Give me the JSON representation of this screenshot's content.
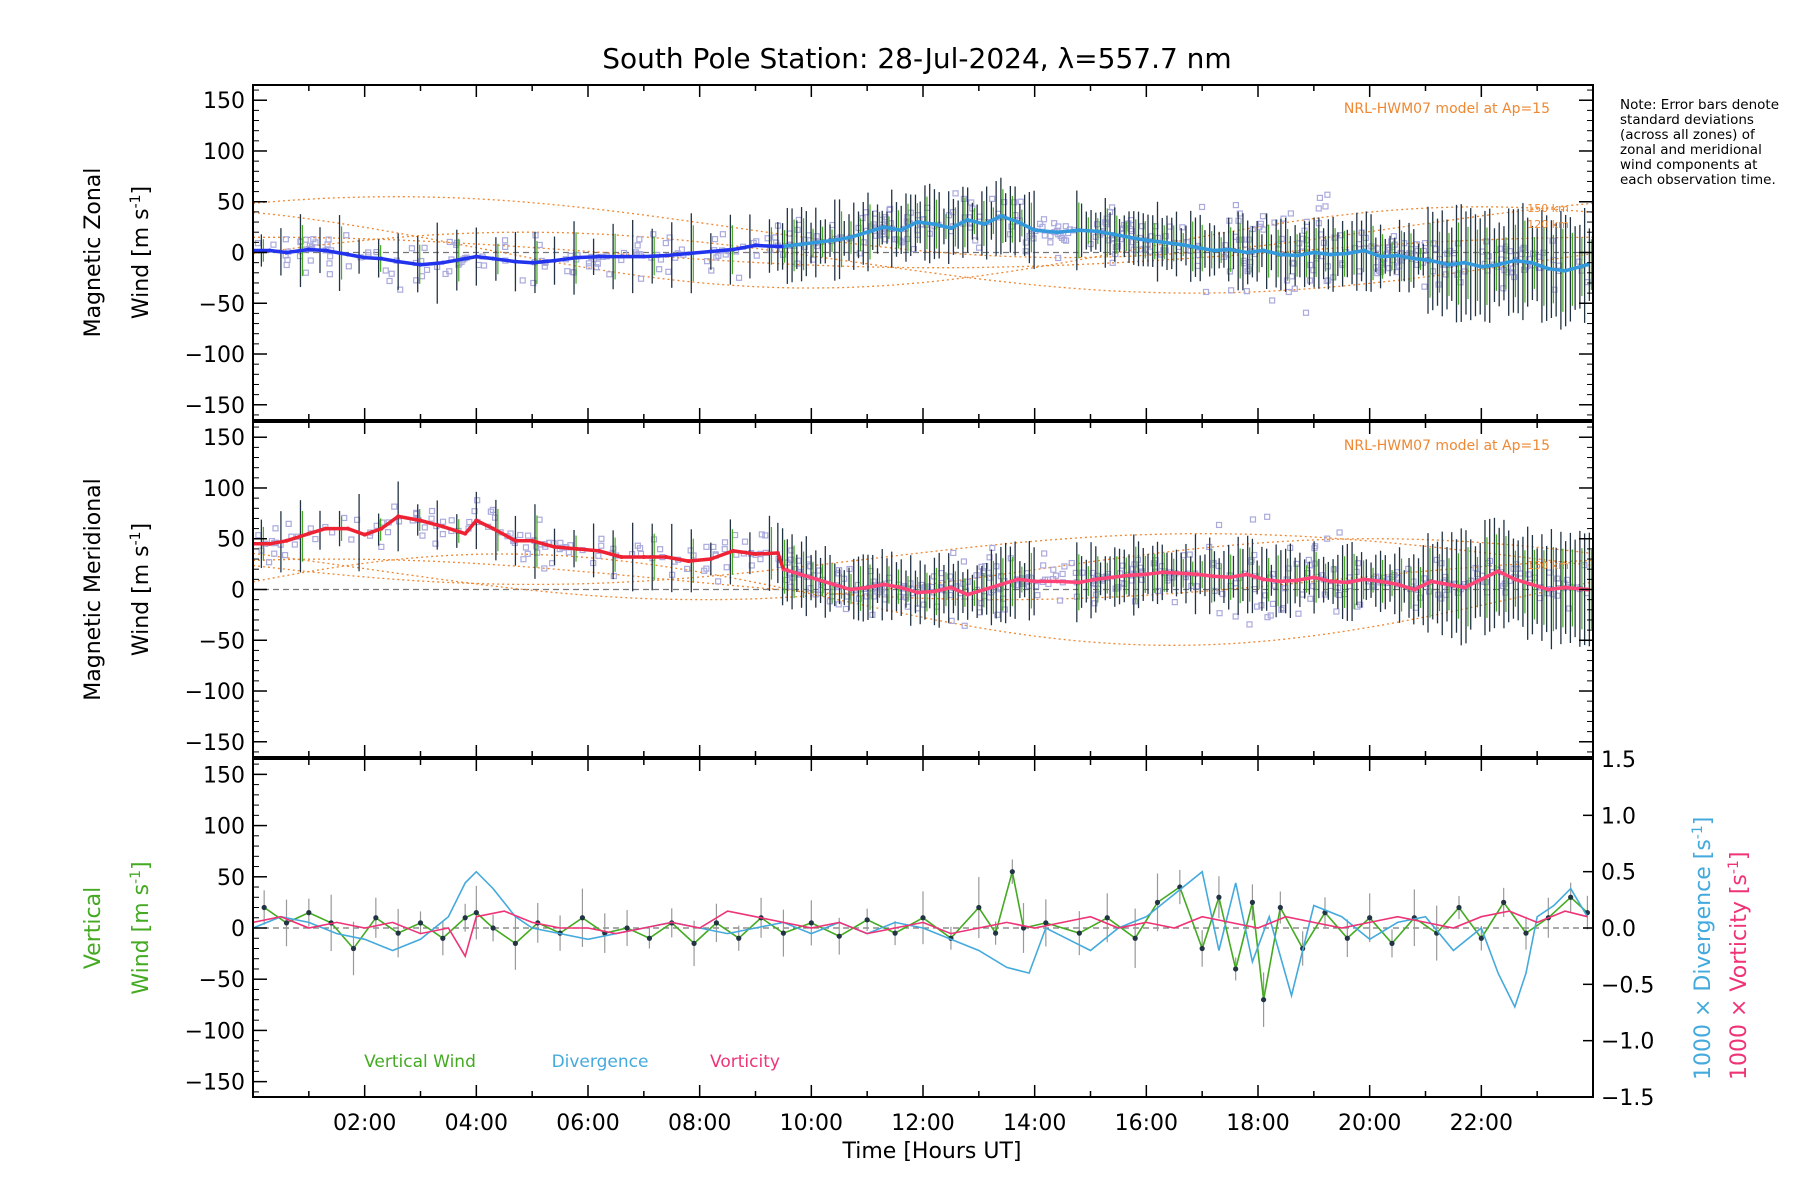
{
  "chart_data": {
    "type": "line",
    "title": "South Pole Station: 28-Jul-2024, λ=557.7 nm",
    "xlabel": "Time [Hours UT]",
    "xlim": [
      0,
      24
    ],
    "x_ticks": [
      "02:00",
      "04:00",
      "06:00",
      "08:00",
      "10:00",
      "12:00",
      "14:00",
      "16:00",
      "18:00",
      "20:00",
      "22:00"
    ],
    "note": "Note: Error bars denote standard deviations (across all zones) of zonal and meridional wind components at each observation time.",
    "panels": [
      {
        "name": "zonal",
        "ylabel_line1": "Magnetic Zonal",
        "ylabel_line2": "Wind [m s",
        "ylabel_sup": "-1",
        "ylabel_end": "]",
        "ylim": [
          -165,
          165
        ],
        "y_ticks": [
          "150",
          "100",
          "50",
          "0",
          "−50",
          "−100",
          "−150"
        ],
        "model_label": "NRL-HWM07 model at Ap=15",
        "alt_labels": [
          "150 km",
          "120 km"
        ],
        "series": [
          {
            "name": "Zonal wind (mean)",
            "color": "#2233ee",
            "x": [
              0.0,
              0.3,
              0.6,
              1.0,
              1.3,
              1.7,
              2.0,
              2.3,
              2.6,
              3.0,
              3.4,
              3.8,
              4.0,
              4.3,
              4.7,
              5.0,
              5.4,
              5.8,
              6.2,
              6.6,
              7.0,
              7.4,
              7.8,
              8.2,
              8.6,
              9.0,
              9.4
            ],
            "values": [
              2,
              2,
              0,
              3,
              2,
              -2,
              -5,
              -6,
              -9,
              -12,
              -10,
              -6,
              -4,
              -6,
              -9,
              -10,
              -8,
              -5,
              -4,
              -4,
              -4,
              -3,
              -1,
              1,
              3,
              7,
              6
            ]
          },
          {
            "name": "Zonal wind (mean, dense)",
            "color": "#3399dd",
            "x": [
              9.5,
              9.8,
              10.1,
              10.4,
              10.7,
              11.0,
              11.3,
              11.6,
              11.9,
              12.2,
              12.5,
              12.8,
              13.1,
              13.4,
              13.7,
              14.0,
              14.4,
              14.8,
              15.1,
              15.4,
              15.7,
              16.0,
              16.3,
              16.6,
              16.9,
              17.2,
              17.5,
              17.8,
              18.1,
              18.4,
              18.7,
              19.0,
              19.3,
              19.6,
              19.9,
              20.2,
              20.5,
              20.8,
              21.1,
              21.4,
              21.7,
              22.0,
              22.3,
              22.6,
              22.9,
              23.2,
              23.5,
              23.9
            ],
            "values": [
              6,
              8,
              10,
              12,
              15,
              20,
              25,
              22,
              30,
              28,
              24,
              32,
              28,
              36,
              30,
              22,
              20,
              22,
              21,
              18,
              15,
              12,
              10,
              8,
              5,
              2,
              3,
              0,
              2,
              -2,
              -3,
              0,
              -2,
              -1,
              2,
              -4,
              -3,
              -6,
              -8,
              -12,
              -10,
              -14,
              -12,
              -8,
              -10,
              -16,
              -18,
              -12
            ]
          }
        ]
      },
      {
        "name": "meridional",
        "ylabel_line1": "Magnetic Meridional",
        "ylabel_line2": "Wind [m s",
        "ylabel_sup": "-1",
        "ylabel_end": "]",
        "ylim": [
          -165,
          165
        ],
        "y_ticks": [
          "150",
          "100",
          "50",
          "0",
          "−50",
          "−100",
          "−150"
        ],
        "model_label": "NRL-HWM07 model at Ap=15",
        "alt_labels": [
          "150 km"
        ],
        "series": [
          {
            "name": "Meridional wind (mean)",
            "color": "#ee2233",
            "x": [
              0.0,
              0.3,
              0.6,
              1.0,
              1.3,
              1.7,
              2.0,
              2.3,
              2.6,
              3.0,
              3.4,
              3.8,
              4.0,
              4.3,
              4.7,
              5.0,
              5.4,
              5.8,
              6.2,
              6.6,
              7.0,
              7.4,
              7.8,
              8.2,
              8.6,
              9.0,
              9.4
            ],
            "values": [
              45,
              45,
              48,
              55,
              60,
              60,
              54,
              60,
              72,
              68,
              62,
              55,
              68,
              60,
              48,
              48,
              42,
              40,
              38,
              32,
              32,
              32,
              28,
              30,
              38,
              35,
              36
            ]
          },
          {
            "name": "Meridional wind (mean, dense)",
            "color": "#ff4477",
            "x": [
              9.5,
              9.8,
              10.1,
              10.4,
              10.7,
              11.0,
              11.3,
              11.6,
              11.9,
              12.2,
              12.5,
              12.8,
              13.1,
              13.4,
              13.7,
              14.0,
              14.4,
              14.8,
              15.1,
              15.4,
              15.7,
              16.0,
              16.3,
              16.6,
              16.9,
              17.2,
              17.5,
              17.8,
              18.1,
              18.4,
              18.7,
              19.0,
              19.3,
              19.6,
              19.9,
              20.2,
              20.5,
              20.8,
              21.1,
              21.4,
              21.7,
              22.0,
              22.3,
              22.6,
              22.9,
              23.2,
              23.5,
              23.9
            ],
            "values": [
              20,
              15,
              10,
              5,
              0,
              2,
              5,
              2,
              -3,
              -2,
              2,
              -5,
              0,
              5,
              10,
              8,
              8,
              7,
              10,
              12,
              14,
              15,
              17,
              16,
              15,
              13,
              12,
              15,
              10,
              8,
              9,
              12,
              8,
              7,
              10,
              8,
              5,
              0,
              8,
              5,
              2,
              10,
              18,
              10,
              5,
              0,
              2,
              0
            ]
          }
        ]
      },
      {
        "name": "vertical",
        "ylabel_line1": "Vertical",
        "ylabel_line2": "Wind [m s",
        "ylabel_sup": "-1",
        "ylabel_end": "]",
        "ylim": [
          -165,
          165
        ],
        "y_ticks": [
          "150",
          "100",
          "50",
          "0",
          "−50",
          "−100",
          "−150"
        ],
        "y2_ticks": [
          "1.5",
          "1.0",
          "0.5",
          "0.0",
          "−0.5",
          "−1.0",
          "−1.5"
        ],
        "y2lim": [
          -1.5,
          1.5
        ],
        "y2_label_div": "1000 × Divergence [s",
        "y2_label_vor": "1000 × Vorticity [s",
        "y2_label_sup": "-1",
        "y2_label_end": "]",
        "legend": [
          "Vertical Wind",
          "Divergence",
          "Vorticity"
        ],
        "series": [
          {
            "name": "Vertical Wind",
            "color": "#44aa22",
            "x": [
              0.2,
              0.6,
              1.0,
              1.4,
              1.8,
              2.2,
              2.6,
              3.0,
              3.4,
              3.8,
              4.0,
              4.3,
              4.7,
              5.1,
              5.5,
              5.9,
              6.3,
              6.7,
              7.1,
              7.5,
              7.9,
              8.3,
              8.7,
              9.1,
              9.5,
              10.0,
              10.5,
              11.0,
              11.5,
              12.0,
              12.5,
              13.0,
              13.3,
              13.6,
              13.8,
              14.2,
              14.8,
              15.3,
              15.8,
              16.2,
              16.6,
              17.0,
              17.3,
              17.6,
              17.9,
              18.1,
              18.4,
              18.8,
              19.2,
              19.6,
              20.0,
              20.4,
              20.8,
              21.2,
              21.6,
              22.0,
              22.4,
              22.8,
              23.2,
              23.6,
              23.9
            ],
            "values": [
              20,
              5,
              15,
              5,
              -20,
              10,
              -5,
              5,
              -10,
              10,
              15,
              0,
              -15,
              5,
              -5,
              10,
              -5,
              0,
              -10,
              5,
              -15,
              5,
              -10,
              10,
              -5,
              5,
              -8,
              8,
              -5,
              10,
              -10,
              20,
              -5,
              55,
              0,
              5,
              -5,
              10,
              -10,
              25,
              40,
              -20,
              30,
              -40,
              25,
              -70,
              20,
              -20,
              15,
              -10,
              10,
              -15,
              10,
              -5,
              20,
              -10,
              25,
              -5,
              10,
              30,
              15
            ]
          },
          {
            "name": "Divergence",
            "color": "#44aadd",
            "x": [
              0.0,
              0.5,
              1.0,
              1.5,
              2.0,
              2.5,
              3.0,
              3.5,
              3.8,
              4.0,
              4.3,
              4.7,
              5.0,
              5.5,
              6.0,
              6.5,
              7.0,
              7.5,
              8.0,
              8.5,
              9.0,
              9.5,
              10.0,
              10.5,
              11.0,
              11.5,
              12.0,
              12.5,
              13.0,
              13.5,
              13.9,
              14.2,
              14.6,
              15.0,
              15.5,
              16.0,
              16.5,
              17.0,
              17.3,
              17.6,
              17.9,
              18.2,
              18.6,
              19.0,
              19.5,
              20.0,
              20.5,
              21.0,
              21.5,
              22.0,
              22.3,
              22.6,
              22.8,
              23.0,
              23.3,
              23.6,
              23.9
            ],
            "values": [
              0.0,
              0.1,
              0.05,
              -0.05,
              -0.1,
              -0.2,
              -0.1,
              0.1,
              0.4,
              0.5,
              0.35,
              0.1,
              0.0,
              -0.05,
              -0.1,
              -0.05,
              0.0,
              0.05,
              0.0,
              -0.05,
              0.0,
              0.05,
              -0.05,
              0.05,
              -0.05,
              0.05,
              0.0,
              -0.1,
              -0.2,
              -0.35,
              -0.4,
              0.0,
              -0.1,
              -0.2,
              0.0,
              0.1,
              0.3,
              0.5,
              -0.2,
              0.4,
              -0.3,
              0.1,
              -0.6,
              0.2,
              0.1,
              -0.1,
              0.05,
              0.1,
              -0.2,
              0.0,
              -0.4,
              -0.7,
              -0.4,
              0.1,
              0.2,
              0.35,
              0.1
            ]
          },
          {
            "name": "Vorticity",
            "color": "#ee3377",
            "x": [
              0.0,
              0.5,
              1.0,
              1.5,
              2.0,
              2.5,
              3.0,
              3.5,
              3.8,
              4.0,
              4.5,
              5.0,
              5.5,
              6.0,
              6.5,
              7.0,
              7.5,
              8.0,
              8.5,
              9.0,
              9.5,
              10.0,
              10.5,
              11.0,
              11.5,
              12.0,
              12.5,
              13.0,
              13.5,
              14.0,
              14.5,
              15.0,
              15.5,
              16.0,
              16.5,
              17.0,
              17.5,
              18.0,
              18.5,
              19.0,
              19.5,
              20.0,
              20.5,
              21.0,
              21.5,
              22.0,
              22.5,
              23.0,
              23.5,
              23.9
            ],
            "values": [
              0.05,
              0.1,
              0.0,
              0.05,
              0.0,
              0.05,
              -0.05,
              0.0,
              -0.25,
              0.1,
              0.15,
              0.05,
              0.0,
              0.0,
              -0.05,
              0.0,
              0.05,
              0.0,
              0.15,
              0.1,
              0.05,
              0.0,
              0.05,
              -0.05,
              0.0,
              0.05,
              -0.05,
              0.0,
              0.05,
              0.0,
              0.05,
              0.1,
              0.0,
              0.05,
              0.0,
              0.1,
              0.05,
              0.0,
              0.1,
              0.05,
              0.0,
              0.05,
              0.1,
              0.05,
              0.0,
              0.1,
              0.15,
              0.05,
              0.15,
              0.1
            ]
          }
        ]
      }
    ]
  },
  "colors": {
    "zonal_mean": "#2233ee",
    "zonal_dense": "#3399dd",
    "meridional_mean": "#ee2233",
    "meridional_dense": "#ff4477",
    "model": "#ee8833",
    "scatter": "#aaaadd",
    "error_bar_dark": "#223344",
    "error_bar_green": "#44aa22",
    "vertical": "#44aa22",
    "divergence": "#44aadd",
    "vorticity": "#ee3377"
  }
}
